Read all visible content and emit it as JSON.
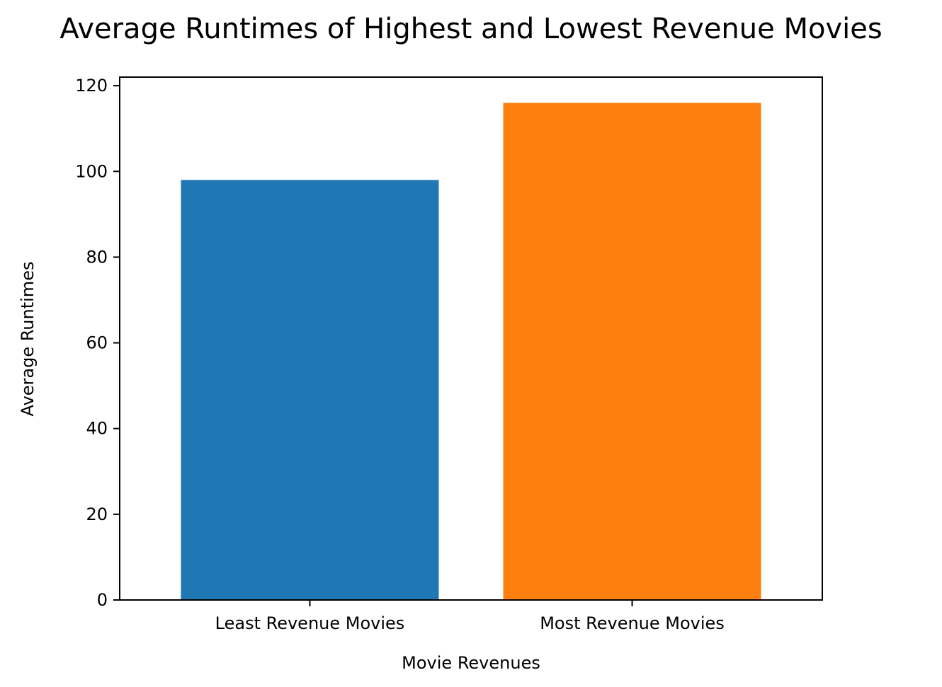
{
  "chart_data": {
    "type": "bar",
    "title": "Average Runtimes of Highest and Lowest Revenue Movies",
    "xlabel": "Movie Revenues",
    "ylabel": "Average Runtimes",
    "categories": [
      "Least Revenue Movies",
      "Most Revenue Movies"
    ],
    "values": [
      98,
      116
    ],
    "colors": [
      "#1f77b4",
      "#ff7f0e"
    ],
    "ylim": [
      0,
      122
    ],
    "yticks": [
      0,
      20,
      40,
      60,
      80,
      100,
      120
    ],
    "grid": false,
    "legend": "none"
  }
}
